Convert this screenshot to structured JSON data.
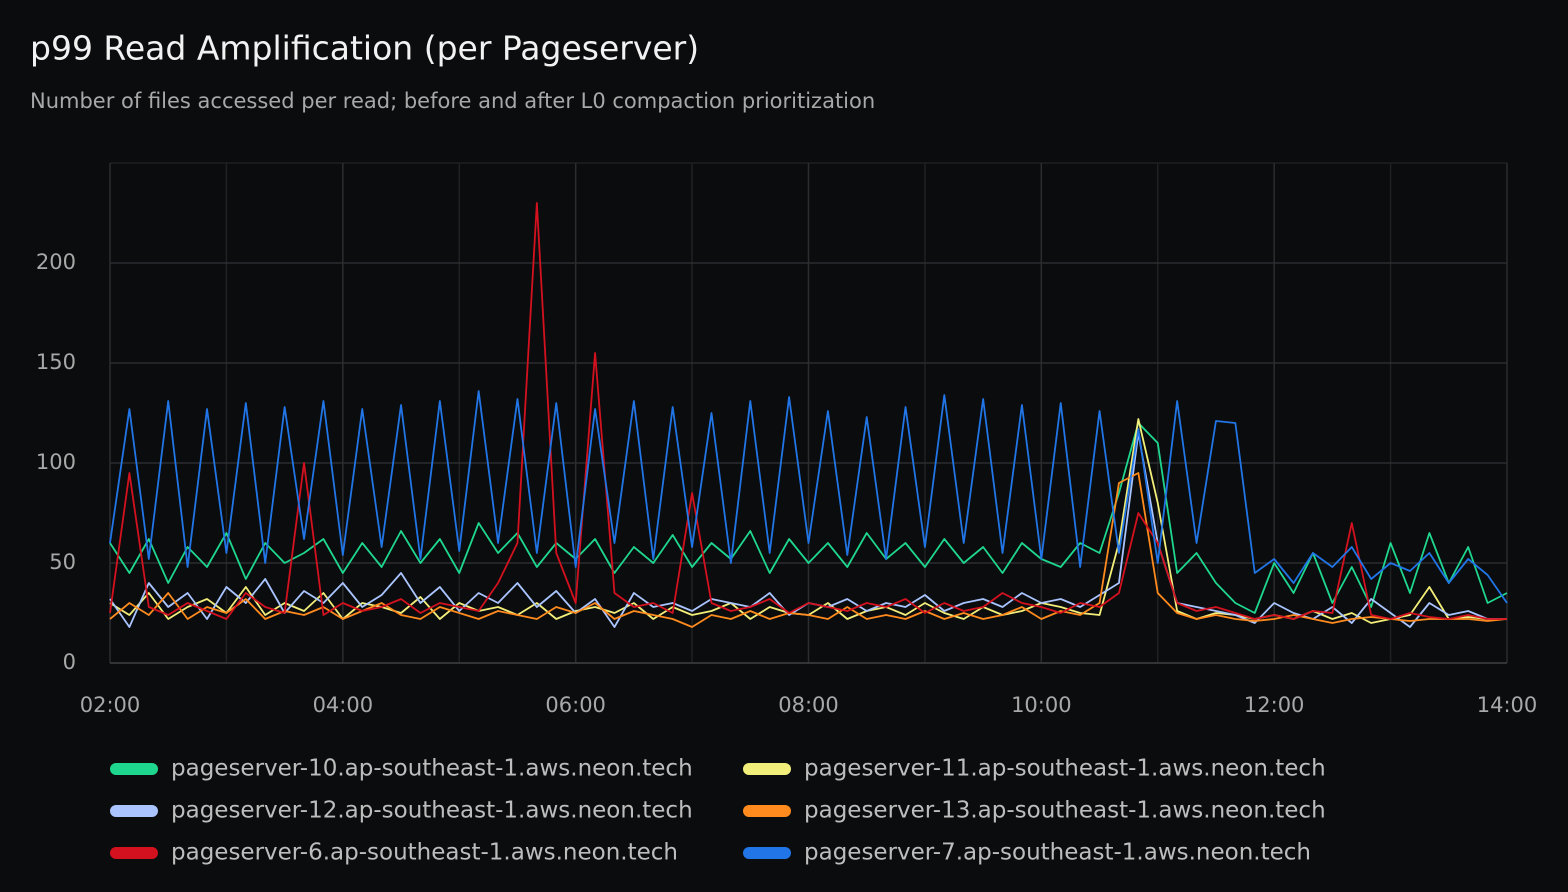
{
  "chart_data": {
    "type": "line",
    "title": "p99 Read Amplification (per Pageserver)",
    "subtitle": "Number of files accessed per read; before and after L0 compaction prioritization",
    "x": [
      "02:00",
      "02:10",
      "02:20",
      "02:30",
      "02:40",
      "02:50",
      "03:00",
      "03:10",
      "03:20",
      "03:30",
      "03:40",
      "03:50",
      "04:00",
      "04:10",
      "04:20",
      "04:30",
      "04:40",
      "04:50",
      "05:00",
      "05:10",
      "05:20",
      "05:30",
      "05:40",
      "05:50",
      "06:00",
      "06:10",
      "06:20",
      "06:30",
      "06:40",
      "06:50",
      "07:00",
      "07:10",
      "07:20",
      "07:30",
      "07:40",
      "07:50",
      "08:00",
      "08:10",
      "08:20",
      "08:30",
      "08:40",
      "08:50",
      "09:00",
      "09:10",
      "09:20",
      "09:30",
      "09:40",
      "09:50",
      "10:00",
      "10:10",
      "10:20",
      "10:30",
      "10:40",
      "10:50",
      "11:00",
      "11:10",
      "11:20",
      "11:30",
      "11:40",
      "11:50",
      "12:00",
      "12:10",
      "12:20",
      "12:30",
      "12:40",
      "12:50",
      "13:00",
      "13:10",
      "13:20",
      "13:30",
      "13:40",
      "13:50",
      "14:00"
    ],
    "xlim": [
      "02:00",
      "14:00"
    ],
    "xticks": [
      "02:00",
      "04:00",
      "06:00",
      "08:00",
      "10:00",
      "12:00",
      "14:00"
    ],
    "ylim": [
      0,
      250
    ],
    "yticks": [
      0,
      50,
      100,
      150,
      200
    ],
    "grid": true,
    "legend": "bottom",
    "series": [
      {
        "name": "pageserver-10.ap-southeast-1.aws.neon.tech",
        "color": "#1fd68f",
        "values": [
          60,
          45,
          62,
          40,
          58,
          48,
          65,
          42,
          60,
          50,
          55,
          62,
          45,
          60,
          48,
          66,
          50,
          62,
          45,
          70,
          55,
          65,
          48,
          60,
          52,
          62,
          45,
          58,
          50,
          64,
          48,
          60,
          52,
          66,
          45,
          62,
          50,
          60,
          48,
          65,
          52,
          60,
          48,
          62,
          50,
          58,
          45,
          60,
          52,
          48,
          60,
          55,
          85,
          120,
          110,
          45,
          55,
          40,
          30,
          25,
          50,
          35,
          55,
          30,
          48,
          28,
          60,
          35,
          65,
          40,
          58,
          30,
          35
        ]
      },
      {
        "name": "pageserver-11.ap-southeast-1.aws.neon.tech",
        "color": "#f2ee7a",
        "values": [
          30,
          24,
          35,
          22,
          28,
          32,
          25,
          38,
          24,
          30,
          26,
          35,
          22,
          30,
          28,
          25,
          33,
          22,
          30,
          26,
          28,
          24,
          30,
          22,
          26,
          28,
          25,
          30,
          22,
          28,
          24,
          26,
          30,
          22,
          28,
          25,
          24,
          30,
          22,
          26,
          28,
          24,
          30,
          25,
          22,
          28,
          24,
          26,
          30,
          28,
          25,
          24,
          60,
          122,
          80,
          26,
          22,
          25,
          24,
          22,
          24,
          22,
          26,
          22,
          25,
          20,
          22,
          24,
          38,
          22,
          23,
          22,
          22
        ]
      },
      {
        "name": "pageserver-12.ap-southeast-1.aws.neon.tech",
        "color": "#a9c4ff",
        "values": [
          32,
          18,
          40,
          28,
          35,
          22,
          38,
          30,
          42,
          25,
          36,
          30,
          40,
          28,
          34,
          45,
          30,
          38,
          26,
          35,
          30,
          40,
          28,
          36,
          25,
          32,
          18,
          35,
          28,
          30,
          26,
          32,
          30,
          28,
          35,
          24,
          30,
          28,
          32,
          26,
          30,
          28,
          34,
          26,
          30,
          32,
          28,
          35,
          30,
          32,
          28,
          34,
          40,
          115,
          60,
          30,
          28,
          26,
          24,
          20,
          30,
          25,
          22,
          28,
          20,
          32,
          25,
          18,
          30,
          24,
          26,
          22,
          22
        ]
      },
      {
        "name": "pageserver-13.ap-southeast-1.aws.neon.tech",
        "color": "#ff8a1e",
        "values": [
          22,
          30,
          24,
          35,
          22,
          28,
          25,
          32,
          22,
          26,
          24,
          28,
          22,
          26,
          30,
          24,
          22,
          28,
          25,
          22,
          26,
          24,
          22,
          28,
          25,
          30,
          22,
          26,
          24,
          22,
          18,
          24,
          22,
          26,
          22,
          25,
          24,
          22,
          28,
          22,
          24,
          22,
          26,
          22,
          25,
          22,
          24,
          28,
          22,
          26,
          24,
          30,
          90,
          95,
          35,
          25,
          22,
          24,
          22,
          21,
          22,
          24,
          22,
          20,
          22,
          23,
          22,
          21,
          22,
          22,
          22,
          21,
          22
        ]
      },
      {
        "name": "pageserver-6.ap-southeast-1.aws.neon.tech",
        "color": "#d3111f",
        "values": [
          25,
          95,
          28,
          24,
          30,
          26,
          22,
          35,
          28,
          25,
          100,
          24,
          30,
          26,
          28,
          32,
          25,
          30,
          28,
          26,
          40,
          60,
          230,
          55,
          30,
          155,
          35,
          28,
          30,
          25,
          85,
          30,
          26,
          28,
          32,
          25,
          30,
          28,
          26,
          30,
          28,
          32,
          25,
          30,
          26,
          28,
          35,
          30,
          28,
          25,
          30,
          28,
          35,
          75,
          60,
          30,
          26,
          28,
          25,
          22,
          24,
          22,
          26,
          25,
          70,
          24,
          22,
          25,
          23,
          22,
          24,
          22,
          22
        ]
      },
      {
        "name": "pageserver-7.ap-southeast-1.aws.neon.tech",
        "color": "#2175e6",
        "values": [
          60,
          127,
          52,
          131,
          48,
          127,
          55,
          130,
          50,
          128,
          62,
          131,
          54,
          127,
          58,
          129,
          52,
          131,
          56,
          136,
          60,
          132,
          55,
          130,
          48,
          127,
          60,
          131,
          52,
          128,
          58,
          125,
          50,
          131,
          55,
          133,
          60,
          126,
          54,
          123,
          52,
          128,
          58,
          134,
          60,
          132,
          55,
          129,
          52,
          130,
          48,
          126,
          55,
          117,
          50,
          131,
          60,
          121,
          120,
          45,
          52,
          40,
          55,
          48,
          58,
          42,
          50,
          46,
          55,
          40,
          52,
          44,
          30
        ]
      }
    ]
  }
}
